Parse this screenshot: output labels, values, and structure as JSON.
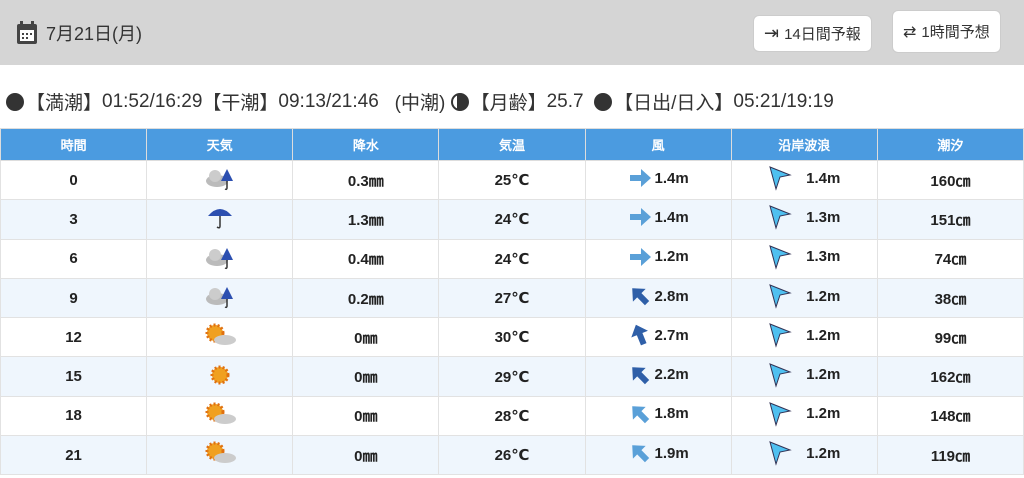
{
  "header": {
    "date": "7月21日(月)",
    "btn_14day": "14日間予報",
    "btn_1hour": "1時間予想"
  },
  "info": {
    "high_label": "【満潮】",
    "high": "01:52/16:29",
    "low_label": "【干潮】",
    "low": "09:13/21:46",
    "tide_type": "(中潮)",
    "moon_label": "【月齢】",
    "moon": "25.7",
    "sun_label": "【日出/日入】",
    "sun": "05:21/19:19"
  },
  "columns": [
    "時間",
    "天気",
    "降水",
    "気温",
    "風",
    "沿岸波浪",
    "潮汐"
  ],
  "colors": {
    "header": "#4b9be0",
    "wind_light": "#5aa0d8",
    "wind_dark": "#2f5fa8",
    "wave": "#4fc0f0"
  },
  "rows": [
    {
      "time": "0",
      "weather": "cloud-rain-icon",
      "precip": "0.3㎜",
      "temp": "25℃",
      "wind_dir": "E",
      "wind_strength": "light",
      "wind": "1.4m",
      "wave": "1.4m",
      "tide": "160㎝"
    },
    {
      "time": "3",
      "weather": "umbrella-icon",
      "precip": "1.3㎜",
      "temp": "24℃",
      "wind_dir": "E",
      "wind_strength": "light",
      "wind": "1.4m",
      "wave": "1.3m",
      "tide": "151㎝"
    },
    {
      "time": "6",
      "weather": "cloud-rain-icon",
      "precip": "0.4㎜",
      "temp": "24℃",
      "wind_dir": "E",
      "wind_strength": "light",
      "wind": "1.2m",
      "wave": "1.3m",
      "tide": "74㎝"
    },
    {
      "time": "9",
      "weather": "cloud-rain-icon",
      "precip": "0.2㎜",
      "temp": "27℃",
      "wind_dir": "NW",
      "wind_strength": "strong",
      "wind": "2.8m",
      "wave": "1.2m",
      "tide": "38㎝"
    },
    {
      "time": "12",
      "weather": "sun-cloud-icon",
      "precip": "0㎜",
      "temp": "30℃",
      "wind_dir": "NNW",
      "wind_strength": "strong",
      "wind": "2.7m",
      "wave": "1.2m",
      "tide": "99㎝"
    },
    {
      "time": "15",
      "weather": "sun-icon",
      "precip": "0㎜",
      "temp": "29℃",
      "wind_dir": "NW",
      "wind_strength": "strong",
      "wind": "2.2m",
      "wave": "1.2m",
      "tide": "162㎝"
    },
    {
      "time": "18",
      "weather": "sun-cloud-icon",
      "precip": "0㎜",
      "temp": "28℃",
      "wind_dir": "NW",
      "wind_strength": "light",
      "wind": "1.8m",
      "wave": "1.2m",
      "tide": "148㎝"
    },
    {
      "time": "21",
      "weather": "sun-cloud-icon",
      "precip": "0㎜",
      "temp": "26℃",
      "wind_dir": "NW",
      "wind_strength": "light",
      "wind": "1.9m",
      "wave": "1.2m",
      "tide": "119㎝"
    }
  ]
}
